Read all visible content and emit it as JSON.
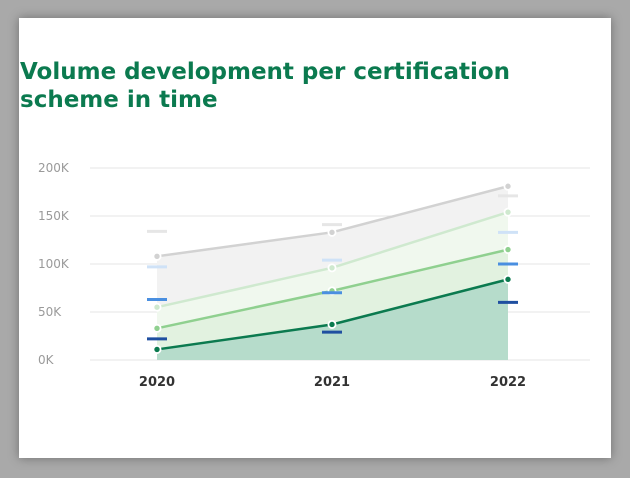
{
  "title": "Volume development per certification scheme in time",
  "chart_data": {
    "type": "area",
    "title": "Volume development per certification scheme in time",
    "xlabel": "",
    "ylabel": "",
    "categories": [
      "2020",
      "2021",
      "2022"
    ],
    "y_ticks": [
      "0K",
      "50K",
      "100K",
      "150K",
      "200K"
    ],
    "ylim": [
      0,
      200000
    ],
    "grid": true,
    "legend": "none",
    "series": [
      {
        "color": "#d2d2d2",
        "fill": "#f2f2f2",
        "values": [
          108000,
          133000,
          181000
        ],
        "markers": [
          134000,
          141000,
          171000
        ]
      },
      {
        "color": "#cfe9cf",
        "fill": "#f0f8ee",
        "values": [
          55000,
          96000,
          154000
        ],
        "markers": [
          97000,
          104000,
          133000
        ]
      },
      {
        "color": "#8fd08f",
        "fill": "#e2f2e0",
        "values": [
          33000,
          72000,
          115000
        ],
        "markers": [
          63000,
          70000,
          100000
        ]
      },
      {
        "color": "#0b7a4f",
        "fill": "#b6dccb",
        "values": [
          11000,
          37000,
          84000
        ],
        "markers": [
          22000,
          29000,
          60000
        ]
      }
    ],
    "marker_colors": [
      "#e6e6e6",
      "#cfe2f7",
      "#4a8fe0",
      "#1f4fa0"
    ]
  }
}
